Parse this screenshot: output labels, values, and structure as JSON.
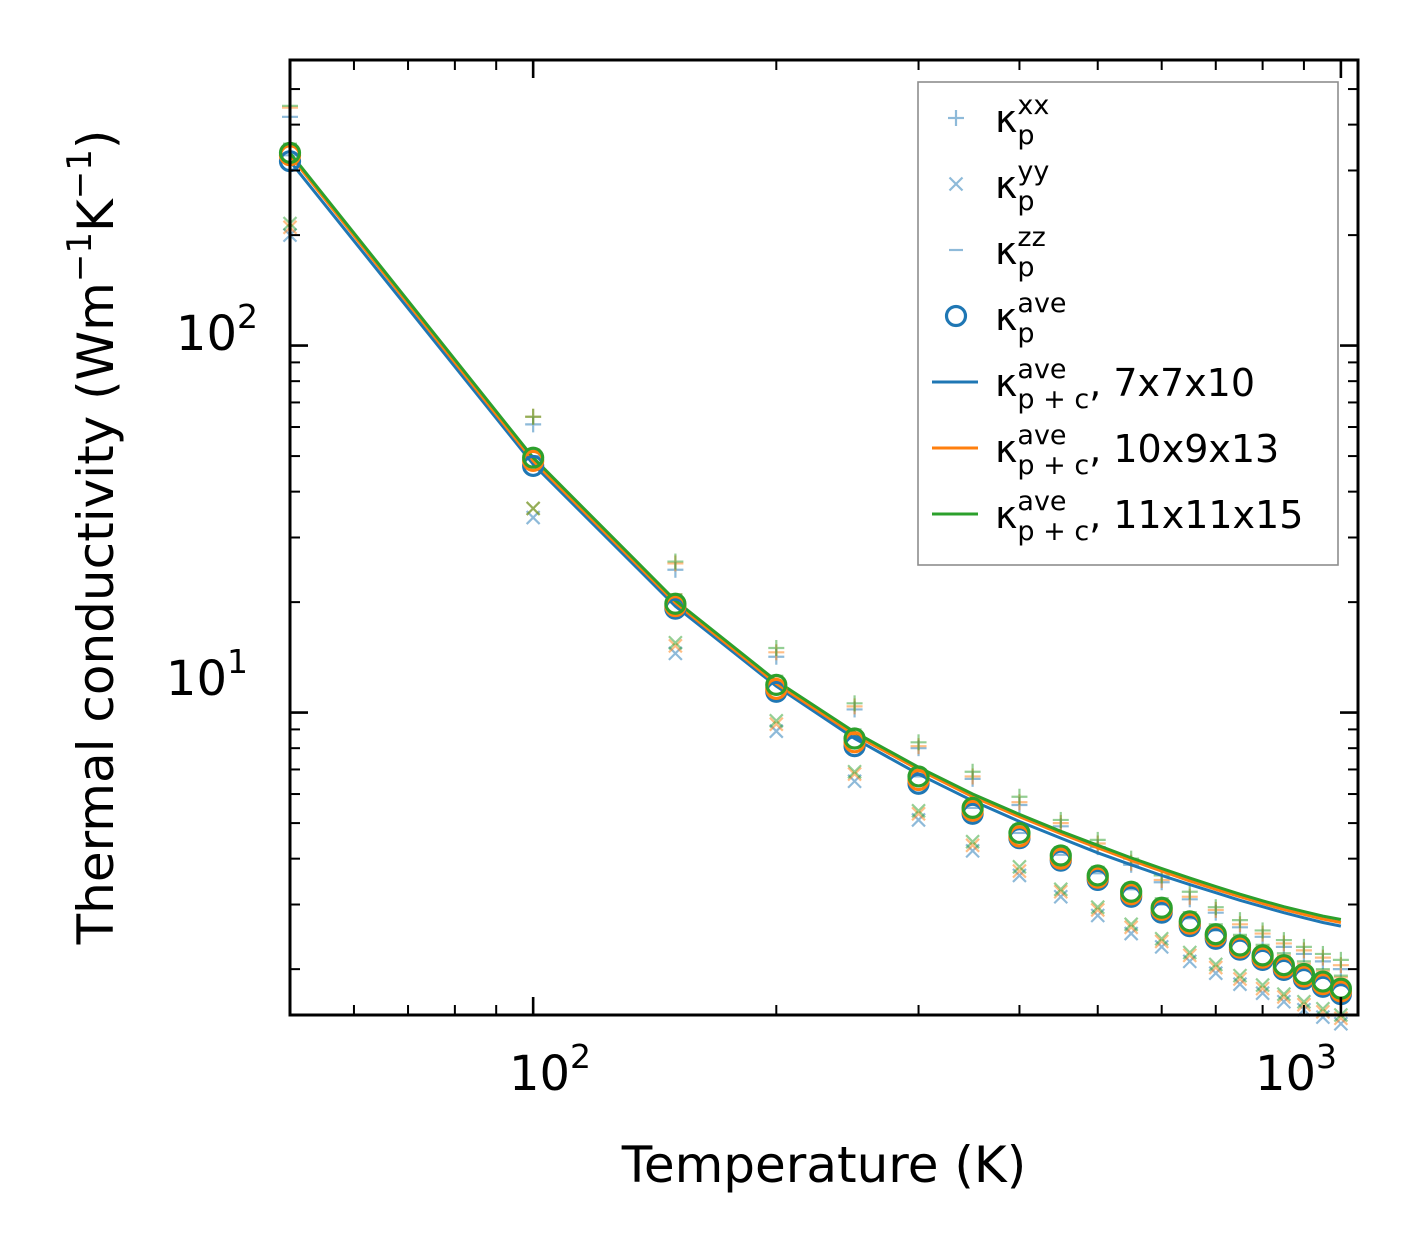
{
  "chart_data": {
    "type": "scatter",
    "xscale": "log",
    "yscale": "log",
    "xlabel": "Temperature (K)",
    "ylabel_base": "Thermal conductivity (Wm",
    "ylabel_unit1": "K",
    "ylabel_exp": "−1",
    "xlim": [
      50,
      1050
    ],
    "ylim": [
      1.5,
      600
    ],
    "x_ticks": [
      {
        "base": "10",
        "exp": "2",
        "value": 100
      },
      {
        "base": "10",
        "exp": "3",
        "value": 1000
      }
    ],
    "y_ticks": [
      {
        "base": "10",
        "exp": "1",
        "value": 10
      },
      {
        "base": "10",
        "exp": "2",
        "value": 100
      }
    ],
    "temperatures": [
      50,
      100,
      150,
      200,
      250,
      300,
      350,
      400,
      450,
      500,
      550,
      600,
      650,
      700,
      750,
      800,
      850,
      900,
      950,
      1000
    ],
    "colors": {
      "blue": "#1f77b4",
      "orange": "#ff7f0e",
      "green": "#2ca02c"
    },
    "legend": [
      {
        "key": "xx",
        "label": "κ",
        "sub": "p",
        "sup": "xx",
        "extra": "",
        "marker": "plus"
      },
      {
        "key": "yy",
        "label": "κ",
        "sub": "p",
        "sup": "yy",
        "extra": "",
        "marker": "x"
      },
      {
        "key": "zz",
        "label": "κ",
        "sub": "p",
        "sup": "zz",
        "extra": "",
        "marker": "dash"
      },
      {
        "key": "ave",
        "label": "κ",
        "sub": "p",
        "sup": "ave",
        "extra": "",
        "marker": "circle"
      },
      {
        "key": "line1",
        "label": "κ",
        "sub": "p + c",
        "sup": "ave",
        "extra": ", 7x7x10",
        "marker": "line",
        "color": "blue"
      },
      {
        "key": "line2",
        "label": "κ",
        "sub": "p + c",
        "sup": "ave",
        "extra": ", 10x9x13",
        "marker": "line",
        "color": "orange"
      },
      {
        "key": "line3",
        "label": "κ",
        "sub": "p + c",
        "sup": "ave",
        "extra": ", 11x11x15",
        "marker": "line",
        "color": "green"
      }
    ],
    "series": [
      {
        "name": "7x7x10",
        "color": "blue",
        "xx": [
          420,
          61,
          24.5,
          14.2,
          10.2,
          8.0,
          6.6,
          5.6,
          4.9,
          4.3,
          3.85,
          3.45,
          3.1,
          2.85,
          2.6,
          2.45,
          2.3,
          2.2,
          2.1,
          2.0
        ],
        "yy": [
          200,
          34,
          14.5,
          8.9,
          6.5,
          5.1,
          4.2,
          3.6,
          3.15,
          2.8,
          2.5,
          2.3,
          2.1,
          1.95,
          1.82,
          1.72,
          1.63,
          1.55,
          1.48,
          1.42
        ],
        "zz": [
          330,
          50,
          20,
          12,
          8.6,
          6.7,
          5.5,
          4.7,
          4.1,
          3.65,
          3.3,
          3.0,
          2.75,
          2.55,
          2.4,
          2.25,
          2.12,
          2.02,
          1.93,
          1.85
        ],
        "ave": [
          318,
          47,
          19.2,
          11.4,
          8.1,
          6.4,
          5.3,
          4.55,
          3.95,
          3.5,
          3.15,
          2.85,
          2.62,
          2.42,
          2.26,
          2.12,
          1.99,
          1.88,
          1.79,
          1.71
        ],
        "pc": [
          318,
          47.5,
          19.5,
          11.8,
          8.5,
          6.8,
          5.75,
          5.05,
          4.55,
          4.15,
          3.85,
          3.6,
          3.4,
          3.23,
          3.08,
          2.96,
          2.85,
          2.76,
          2.68,
          2.62
        ]
      },
      {
        "name": "10x9x13",
        "color": "orange",
        "xx": [
          445,
          64,
          25.5,
          14.6,
          10.4,
          8.1,
          6.7,
          5.7,
          5.0,
          4.4,
          3.9,
          3.5,
          3.15,
          2.9,
          2.65,
          2.5,
          2.35,
          2.25,
          2.15,
          2.05
        ],
        "yy": [
          210,
          36,
          15.2,
          9.3,
          6.8,
          5.3,
          4.35,
          3.7,
          3.25,
          2.9,
          2.6,
          2.38,
          2.18,
          2.02,
          1.88,
          1.77,
          1.68,
          1.6,
          1.53,
          1.47
        ],
        "zz": [
          350,
          52,
          21,
          12.5,
          8.9,
          6.9,
          5.7,
          4.85,
          4.2,
          3.75,
          3.38,
          3.08,
          2.82,
          2.62,
          2.45,
          2.3,
          2.18,
          2.07,
          1.98,
          1.9
        ],
        "ave": [
          330,
          48.5,
          19.5,
          11.6,
          8.3,
          6.55,
          5.4,
          4.6,
          4.0,
          3.55,
          3.2,
          2.9,
          2.66,
          2.46,
          2.29,
          2.15,
          2.02,
          1.91,
          1.82,
          1.74
        ],
        "pc": [
          330,
          48.5,
          19.9,
          12.0,
          8.7,
          7.0,
          5.9,
          5.2,
          4.68,
          4.28,
          3.96,
          3.7,
          3.48,
          3.3,
          3.15,
          3.02,
          2.91,
          2.82,
          2.74,
          2.68
        ]
      },
      {
        "name": "11x11x15",
        "color": "green",
        "xx": [
          450,
          64,
          25.8,
          15.0,
          10.6,
          8.3,
          6.9,
          5.9,
          5.1,
          4.5,
          4.0,
          3.6,
          3.25,
          2.95,
          2.72,
          2.55,
          2.4,
          2.3,
          2.2,
          2.12
        ],
        "yy": [
          215,
          36,
          15.5,
          9.5,
          6.9,
          5.4,
          4.45,
          3.8,
          3.3,
          2.95,
          2.65,
          2.42,
          2.22,
          2.06,
          1.92,
          1.81,
          1.71,
          1.63,
          1.56,
          1.5
        ],
        "zz": [
          355,
          52,
          21,
          12.6,
          9.0,
          7.0,
          5.8,
          4.95,
          4.3,
          3.8,
          3.42,
          3.12,
          2.86,
          2.65,
          2.48,
          2.33,
          2.21,
          2.1,
          2.0,
          1.92
        ],
        "ave": [
          335,
          49.5,
          19.8,
          11.9,
          8.5,
          6.7,
          5.5,
          4.7,
          4.08,
          3.6,
          3.25,
          2.94,
          2.7,
          2.49,
          2.32,
          2.18,
          2.05,
          1.94,
          1.85,
          1.77
        ],
        "pc": [
          335,
          49.5,
          20.2,
          12.2,
          8.85,
          7.1,
          6.0,
          5.28,
          4.75,
          4.35,
          4.02,
          3.76,
          3.54,
          3.36,
          3.2,
          3.07,
          2.96,
          2.87,
          2.79,
          2.73
        ]
      }
    ]
  }
}
